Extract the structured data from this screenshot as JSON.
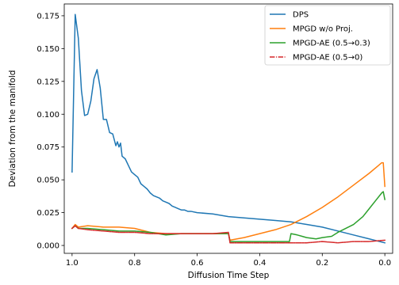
{
  "chart_data": {
    "type": "line",
    "xlabel": "Diffusion Time Step",
    "ylabel": "Deviation from the manifold",
    "x_reversed": true,
    "xlim": [
      1.025,
      -0.025
    ],
    "ylim": [
      -0.006,
      0.184
    ],
    "xticks": [
      1.0,
      0.8,
      0.6,
      0.4,
      0.2,
      0.0
    ],
    "xtick_labels": [
      "1.0",
      "0.8",
      "0.6",
      "0.4",
      "0.2",
      "0.0"
    ],
    "yticks": [
      0.0,
      0.025,
      0.05,
      0.075,
      0.1,
      0.125,
      0.15,
      0.175
    ],
    "ytick_labels": [
      "0.000",
      "0.025",
      "0.050",
      "0.075",
      "0.100",
      "0.125",
      "0.150",
      "0.175"
    ],
    "grid": false,
    "legend_position": "top-right",
    "series": [
      {
        "name": "DPS",
        "color": "#1f77b4",
        "dash": "solid",
        "x": [
          1.0,
          0.99,
          0.98,
          0.97,
          0.96,
          0.95,
          0.94,
          0.93,
          0.92,
          0.91,
          0.9,
          0.89,
          0.88,
          0.87,
          0.86,
          0.855,
          0.85,
          0.845,
          0.84,
          0.83,
          0.82,
          0.81,
          0.8,
          0.79,
          0.78,
          0.77,
          0.76,
          0.75,
          0.74,
          0.73,
          0.72,
          0.71,
          0.7,
          0.69,
          0.68,
          0.67,
          0.66,
          0.65,
          0.64,
          0.63,
          0.62,
          0.6,
          0.55,
          0.5,
          0.45,
          0.4,
          0.35,
          0.3,
          0.25,
          0.2,
          0.15,
          0.1,
          0.05,
          0.0
        ],
        "y": [
          0.056,
          0.176,
          0.158,
          0.118,
          0.099,
          0.1,
          0.11,
          0.127,
          0.134,
          0.12,
          0.096,
          0.096,
          0.086,
          0.085,
          0.076,
          0.079,
          0.075,
          0.078,
          0.068,
          0.066,
          0.061,
          0.056,
          0.054,
          0.052,
          0.047,
          0.045,
          0.043,
          0.04,
          0.038,
          0.037,
          0.036,
          0.034,
          0.033,
          0.032,
          0.03,
          0.029,
          0.028,
          0.027,
          0.027,
          0.026,
          0.026,
          0.025,
          0.024,
          0.022,
          0.021,
          0.02,
          0.019,
          0.018,
          0.016,
          0.014,
          0.011,
          0.008,
          0.005,
          0.002
        ]
      },
      {
        "name": "MPGD w/o Proj.",
        "color": "#ff7f0e",
        "dash": "solid",
        "x": [
          1.0,
          0.99,
          0.98,
          0.95,
          0.9,
          0.85,
          0.8,
          0.75,
          0.7,
          0.65,
          0.6,
          0.55,
          0.5,
          0.495,
          0.45,
          0.4,
          0.35,
          0.3,
          0.25,
          0.2,
          0.15,
          0.1,
          0.05,
          0.02,
          0.01,
          0.005,
          0.0
        ],
        "y": [
          0.013,
          0.016,
          0.014,
          0.015,
          0.014,
          0.014,
          0.013,
          0.01,
          0.009,
          0.009,
          0.009,
          0.009,
          0.009,
          0.004,
          0.006,
          0.009,
          0.012,
          0.016,
          0.022,
          0.029,
          0.037,
          0.046,
          0.055,
          0.061,
          0.063,
          0.063,
          0.045
        ]
      },
      {
        "name": "MPGD-AE (0.5→0.3)",
        "color": "#2ca02c",
        "dash": "solid",
        "x": [
          1.0,
          0.99,
          0.98,
          0.95,
          0.9,
          0.85,
          0.8,
          0.75,
          0.7,
          0.65,
          0.6,
          0.55,
          0.5,
          0.495,
          0.45,
          0.4,
          0.35,
          0.305,
          0.3,
          0.28,
          0.25,
          0.22,
          0.2,
          0.17,
          0.15,
          0.1,
          0.07,
          0.05,
          0.03,
          0.01,
          0.005,
          0.0
        ],
        "y": [
          0.013,
          0.015,
          0.013,
          0.013,
          0.012,
          0.011,
          0.011,
          0.01,
          0.008,
          0.009,
          0.009,
          0.009,
          0.009,
          0.003,
          0.003,
          0.003,
          0.003,
          0.003,
          0.009,
          0.008,
          0.006,
          0.005,
          0.006,
          0.007,
          0.01,
          0.016,
          0.022,
          0.028,
          0.034,
          0.04,
          0.041,
          0.035
        ]
      },
      {
        "name": "MPGD-AE (0.5→0)",
        "color": "#d62728",
        "dash": "dashdot",
        "x": [
          1.0,
          0.99,
          0.98,
          0.95,
          0.9,
          0.85,
          0.8,
          0.75,
          0.7,
          0.65,
          0.6,
          0.55,
          0.5,
          0.495,
          0.45,
          0.4,
          0.35,
          0.3,
          0.25,
          0.2,
          0.15,
          0.1,
          0.05,
          0.0
        ],
        "y": [
          0.013,
          0.015,
          0.013,
          0.012,
          0.011,
          0.01,
          0.01,
          0.009,
          0.009,
          0.009,
          0.009,
          0.009,
          0.01,
          0.002,
          0.002,
          0.002,
          0.002,
          0.002,
          0.002,
          0.003,
          0.002,
          0.003,
          0.003,
          0.004
        ]
      }
    ]
  }
}
